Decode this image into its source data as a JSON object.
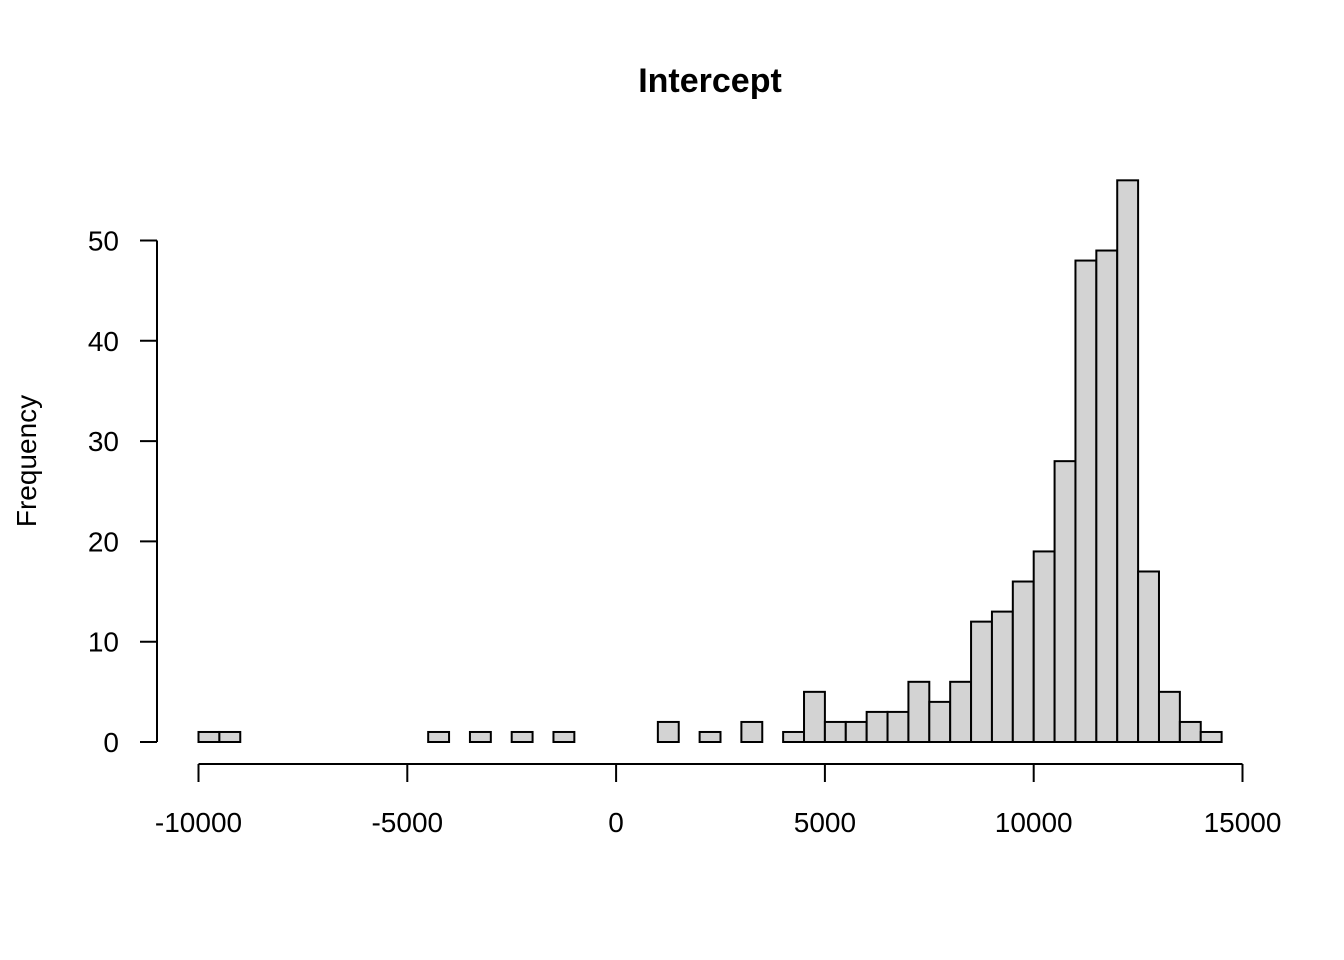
{
  "chart_data": {
    "type": "bar",
    "title": "Intercept",
    "xlabel": "",
    "ylabel": "Frequency",
    "bar_fill": "#d3d3d3",
    "bar_stroke": "#000000",
    "bin_width": 500,
    "x_ticks": [
      -10000,
      -5000,
      0,
      5000,
      10000,
      15000
    ],
    "x_tick_labels": [
      "-10000",
      "-5000",
      "0",
      "5000",
      "10000",
      "15000"
    ],
    "y_ticks": [
      0,
      10,
      20,
      30,
      40,
      50
    ],
    "y_tick_labels": [
      "0",
      "10",
      "20",
      "30",
      "40",
      "50"
    ],
    "xlim": [
      -10000,
      15000
    ],
    "ylim": [
      0,
      56
    ],
    "grid": false,
    "bins": [
      {
        "start": -10000,
        "end": -9500,
        "count": 1
      },
      {
        "start": -9500,
        "end": -9000,
        "count": 1
      },
      {
        "start": -9000,
        "end": -8500,
        "count": 0
      },
      {
        "start": -8500,
        "end": -8000,
        "count": 0
      },
      {
        "start": -8000,
        "end": -7500,
        "count": 0
      },
      {
        "start": -7500,
        "end": -7000,
        "count": 0
      },
      {
        "start": -7000,
        "end": -6500,
        "count": 0
      },
      {
        "start": -6500,
        "end": -6000,
        "count": 0
      },
      {
        "start": -6000,
        "end": -5500,
        "count": 0
      },
      {
        "start": -5500,
        "end": -5000,
        "count": 0
      },
      {
        "start": -5000,
        "end": -4500,
        "count": 0
      },
      {
        "start": -4500,
        "end": -4000,
        "count": 1
      },
      {
        "start": -4000,
        "end": -3500,
        "count": 0
      },
      {
        "start": -3500,
        "end": -3000,
        "count": 1
      },
      {
        "start": -3000,
        "end": -2500,
        "count": 0
      },
      {
        "start": -2500,
        "end": -2000,
        "count": 1
      },
      {
        "start": -2000,
        "end": -1500,
        "count": 0
      },
      {
        "start": -1500,
        "end": -1000,
        "count": 1
      },
      {
        "start": -1000,
        "end": -500,
        "count": 0
      },
      {
        "start": -500,
        "end": 0,
        "count": 0
      },
      {
        "start": 0,
        "end": 500,
        "count": 0
      },
      {
        "start": 500,
        "end": 1000,
        "count": 0
      },
      {
        "start": 1000,
        "end": 1500,
        "count": 2
      },
      {
        "start": 1500,
        "end": 2000,
        "count": 0
      },
      {
        "start": 2000,
        "end": 2500,
        "count": 1
      },
      {
        "start": 2500,
        "end": 3000,
        "count": 0
      },
      {
        "start": 3000,
        "end": 3500,
        "count": 2
      },
      {
        "start": 3500,
        "end": 4000,
        "count": 0
      },
      {
        "start": 4000,
        "end": 4500,
        "count": 1
      },
      {
        "start": 4500,
        "end": 5000,
        "count": 5
      },
      {
        "start": 5000,
        "end": 5500,
        "count": 2
      },
      {
        "start": 5500,
        "end": 6000,
        "count": 2
      },
      {
        "start": 6000,
        "end": 6500,
        "count": 3
      },
      {
        "start": 6500,
        "end": 7000,
        "count": 3
      },
      {
        "start": 7000,
        "end": 7500,
        "count": 6
      },
      {
        "start": 7500,
        "end": 8000,
        "count": 4
      },
      {
        "start": 8000,
        "end": 8500,
        "count": 6
      },
      {
        "start": 8500,
        "end": 9000,
        "count": 12
      },
      {
        "start": 9000,
        "end": 9500,
        "count": 13
      },
      {
        "start": 9500,
        "end": 10000,
        "count": 16
      },
      {
        "start": 10000,
        "end": 10500,
        "count": 19
      },
      {
        "start": 10500,
        "end": 11000,
        "count": 28
      },
      {
        "start": 11000,
        "end": 11500,
        "count": 48
      },
      {
        "start": 11500,
        "end": 12000,
        "count": 49
      },
      {
        "start": 12000,
        "end": 12500,
        "count": 56
      },
      {
        "start": 12500,
        "end": 13000,
        "count": 17
      },
      {
        "start": 13000,
        "end": 13500,
        "count": 5
      },
      {
        "start": 13500,
        "end": 14000,
        "count": 2
      },
      {
        "start": 14000,
        "end": 14500,
        "count": 1
      }
    ]
  }
}
